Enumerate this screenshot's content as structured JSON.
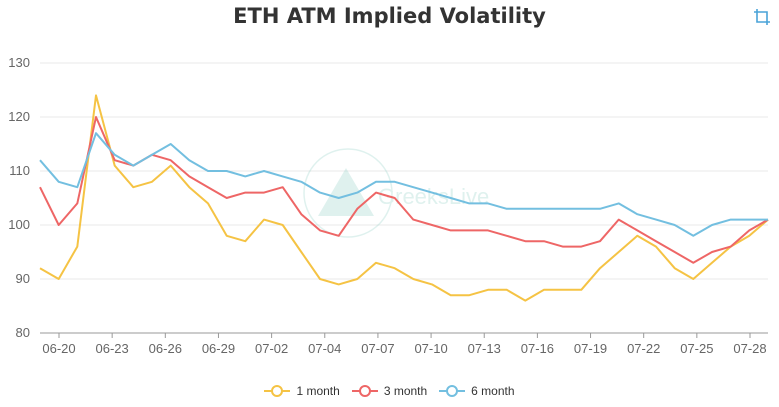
{
  "header": {
    "title": "ETH ATM Implied Volatility"
  },
  "toolbar": {
    "crop_icon": "crop-icon"
  },
  "watermark": {
    "text": "GreeksLive"
  },
  "colors": {
    "one_month": "#F5C344",
    "three_month": "#EE6666",
    "six_month": "#73BFE0",
    "grid": "#e8e8e8",
    "axis": "#666666"
  },
  "chart_data": {
    "type": "line",
    "title": "ETH ATM Implied Volatility",
    "xlabel": "",
    "ylabel": "",
    "ylim": [
      80,
      130
    ],
    "yticks": [
      "80",
      "90",
      "100",
      "110",
      "120",
      "130"
    ],
    "xticks": [
      "06-20",
      "06-23",
      "06-26",
      "06-29",
      "07-02",
      "07-04",
      "07-07",
      "07-10",
      "07-13",
      "07-16",
      "07-19",
      "07-22",
      "07-25",
      "07-28"
    ],
    "grid": true,
    "legend_position": "bottom",
    "x": [
      "06-20",
      "06-21",
      "06-22",
      "06-22",
      "06-23",
      "06-24",
      "06-25",
      "06-26",
      "06-27",
      "06-28",
      "06-29",
      "06-30",
      "07-01",
      "07-02",
      "07-03",
      "07-04",
      "07-05",
      "07-06",
      "07-07",
      "07-08",
      "07-09",
      "07-10",
      "07-11",
      "07-12",
      "07-13",
      "07-14",
      "07-15",
      "07-16",
      "07-17",
      "07-18",
      "07-19",
      "07-20",
      "07-21",
      "07-22",
      "07-23",
      "07-24",
      "07-25",
      "07-26",
      "07-27",
      "07-28"
    ],
    "series": [
      {
        "name": "1 month",
        "color": "#F5C344",
        "values": [
          92,
          90,
          96,
          124,
          111,
          107,
          108,
          111,
          107,
          104,
          98,
          97,
          101,
          100,
          95,
          90,
          89,
          90,
          93,
          92,
          90,
          89,
          87,
          87,
          88,
          88,
          86,
          88,
          88,
          88,
          92,
          95,
          98,
          96,
          92,
          90,
          93,
          96,
          98,
          101
        ]
      },
      {
        "name": "3 month",
        "color": "#EE6666",
        "values": [
          107,
          100,
          104,
          120,
          112,
          111,
          113,
          112,
          109,
          107,
          105,
          106,
          106,
          107,
          102,
          99,
          98,
          103,
          106,
          105,
          101,
          100,
          99,
          99,
          99,
          98,
          97,
          97,
          96,
          96,
          97,
          101,
          99,
          97,
          95,
          93,
          95,
          96,
          99,
          101
        ]
      },
      {
        "name": "6 month",
        "color": "#73BFE0",
        "values": [
          112,
          108,
          107,
          117,
          113,
          111,
          113,
          115,
          112,
          110,
          110,
          109,
          110,
          109,
          108,
          106,
          105,
          106,
          108,
          108,
          107,
          106,
          105,
          104,
          104,
          103,
          103,
          103,
          103,
          103,
          103,
          104,
          102,
          101,
          100,
          98,
          100,
          101,
          101,
          101
        ]
      }
    ]
  }
}
